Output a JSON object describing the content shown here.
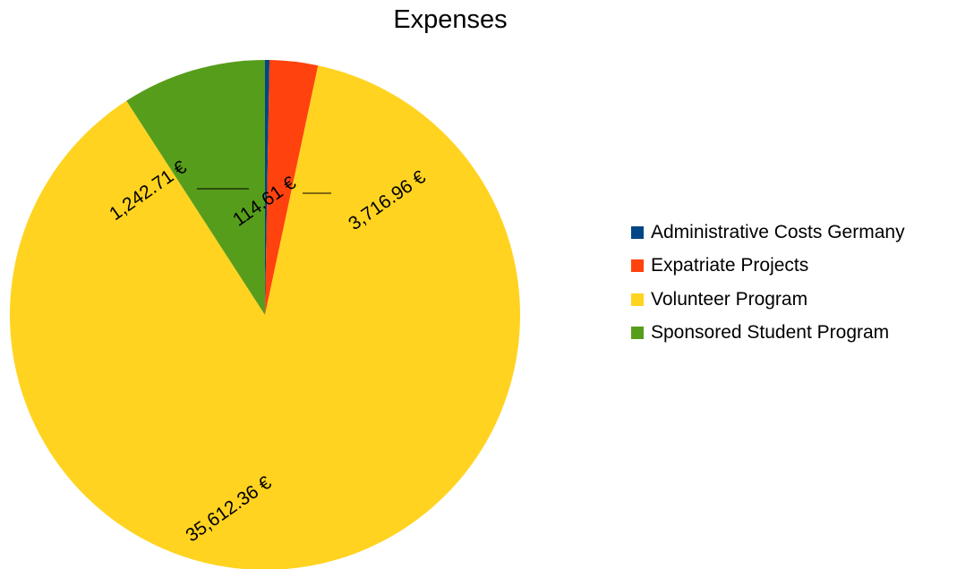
{
  "chart_data": {
    "type": "pie",
    "title": "Expenses",
    "legend_position": "right",
    "categories": [
      "Administrative Costs Germany",
      "Expatriate Projects",
      "Volunteer Program",
      "Sponsored Student Program"
    ],
    "values": [
      114.61,
      1242.71,
      35612.36,
      3716.96
    ],
    "value_labels": [
      "114.61 €",
      "1,242.71 €",
      "35,612.36 €",
      "3,716.96 €"
    ],
    "colors": [
      "#004586",
      "#ff420e",
      "#ffd320",
      "#579d1c"
    ]
  }
}
